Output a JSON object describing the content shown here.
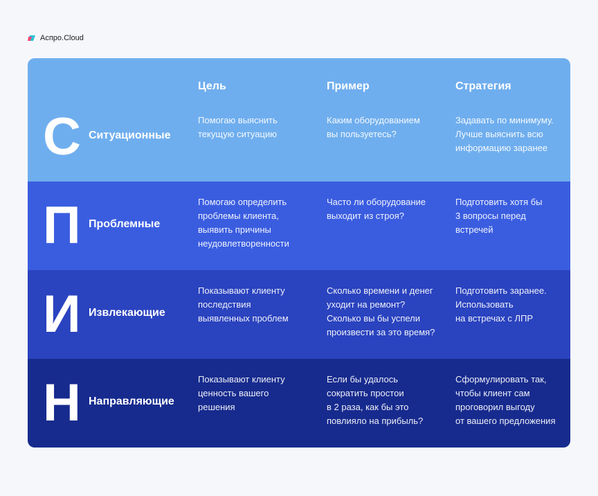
{
  "brand": {
    "name": "Аспро.Cloud"
  },
  "colors": {
    "row1": "#6FAEEE",
    "row2": "#3A5DE0",
    "row3": "#2A43BF",
    "row4": "#172B8E"
  },
  "headers": [
    "Цель",
    "Пример",
    "Стратегия"
  ],
  "rows": [
    {
      "letter": "С",
      "label": "Ситуационные",
      "goal": "Помогаю выяснить\nтекущую ситуацию",
      "example": "Каким оборудованием\nвы пользуетесь?",
      "strategy": "Задавать по минимуму.\nЛучше выяснить всю\nинформацию заранее"
    },
    {
      "letter": "П",
      "label": "Проблемные",
      "goal": "Помогаю определить\nпроблемы клиента,\nвыявить причины\nнеудовлетворенности",
      "example": "Часто ли оборудование\nвыходит из строя?",
      "strategy": "Подготовить хотя бы\n3 вопросы перед\nвстречей"
    },
    {
      "letter": "И",
      "label": "Извлекающие",
      "goal": "Показывают клиенту\nпоследствия\nвыявленных проблем",
      "example": "Сколько времени и денег\nуходит на ремонт?\nСколько вы бы успели\nпроизвести за это время?",
      "strategy": "Подготовить заранее.\nИспользовать\nна встречах с ЛПР"
    },
    {
      "letter": "Н",
      "label": "Направляющие",
      "goal": "Показывают клиенту\nценность вашего\nрешения",
      "example": "Если бы удалось\nсократить простои\nв 2 раза, как бы это\nповлияло на прибыль?",
      "strategy": "Сформулировать так,\nчтобы клиент сам\nпроговорил выгоду\nот вашего предложения"
    }
  ]
}
